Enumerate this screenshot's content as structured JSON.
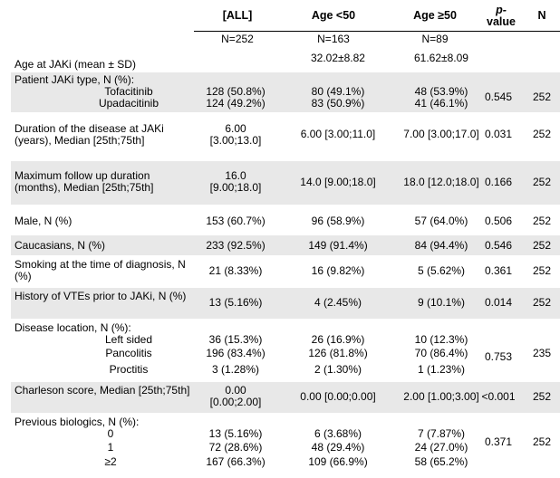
{
  "header": {
    "all": "[ALL]",
    "lt50": "Age <50",
    "ge50": "Age ≥50",
    "p1": "p-",
    "p2": "value",
    "n": "N",
    "n_all": "N=252",
    "n_lt50": "N=163",
    "n_ge50": "N=89"
  },
  "rows": {
    "age": {
      "label": "Age at JAKi (mean ± SD)",
      "lt50": "32.02±8.82",
      "ge50": "61.62±8.09"
    },
    "jaki": {
      "label": "Patient JAKi type, N (%):",
      "sub1": "Tofacitinib",
      "all1": "128 (50.8%)",
      "lt1": "80 (49.1%)",
      "ge1": "48 (53.9%)",
      "sub2": "Upadacitinib",
      "all2": "124 (49.2%)",
      "lt2": "83 (50.9%)",
      "ge2": "41 (46.1%)",
      "p": "0.545",
      "n": "252"
    },
    "duration": {
      "label": "Duration of the disease at JAKi (years), Median [25th;75th]",
      "all1": "6.00",
      "all2": "[3.00;13.0]",
      "lt50": "6.00 [3.00;11.0]",
      "ge50": "7.00 [3.00;17.0]",
      "p": "0.031",
      "n": "252"
    },
    "followup": {
      "label": "Maximum follow up duration (months), Median [25th;75th]",
      "all1": "16.0",
      "all2": "[9.00;18.0]",
      "lt50": "14.0 [9.00;18.0]",
      "ge50": "18.0 [12.0;18.0]",
      "p": "0.166",
      "n": "252"
    },
    "male": {
      "label": "Male, N (%)",
      "all": "153 (60.7%)",
      "lt50": "96 (58.9%)",
      "ge50": "57 (64.0%)",
      "p": "0.506",
      "n": "252"
    },
    "cauc": {
      "label": "Caucasians, N (%)",
      "all": "233 (92.5%)",
      "lt50": "149 (91.4%)",
      "ge50": "84 (94.4%)",
      "p": "0.546",
      "n": "252"
    },
    "smoking": {
      "label": "Smoking at the time of diagnosis, N (%)",
      "all": "21 (8.33%)",
      "lt50": "16 (9.82%)",
      "ge50": "5 (5.62%)",
      "p": "0.361",
      "n": "252"
    },
    "vte": {
      "label": "History of VTEs prior to JAKi, N (%)",
      "all": "13 (5.16%)",
      "lt50": "4 (2.45%)",
      "ge50": "9 (10.1%)",
      "p": "0.014",
      "n": "252"
    },
    "location": {
      "label": "Disease location, N (%):",
      "sub1": "Left sided",
      "all1": "36 (15.3%)",
      "lt1": "26 (16.9%)",
      "ge1": "10 (12.3%)",
      "sub2": "Pancolitis",
      "all2": "196 (83.4%)",
      "lt2": "126 (81.8%)",
      "ge2": "70 (86.4%)",
      "sub3": "Proctitis",
      "all3": "3 (1.28%)",
      "lt3": "2 (1.30%)",
      "ge3": "1 (1.23%)",
      "p": "0.753",
      "n": "235"
    },
    "charlson": {
      "label": "Charleson score, Median [25th;75th]",
      "all1": "0.00",
      "all2": "[0.00;2.00]",
      "lt50": "0.00 [0.00;0.00]",
      "ge50": "2.00 [1.00;3.00]",
      "p": "<0.001",
      "n": "252"
    },
    "biologics": {
      "label": "Previous biologics, N (%):",
      "sub1": "0",
      "all1": "13 (5.16%)",
      "lt1": "6 (3.68%)",
      "ge1": "7 (7.87%)",
      "sub2": "1",
      "all2": "72 (28.6%)",
      "lt2": "48 (29.4%)",
      "ge2": "24 (27.0%)",
      "sub3": "≥2",
      "all3": "167 (66.3%)",
      "lt3": "109 (66.9%)",
      "ge3": "58 (65.2%)",
      "p": "0.371",
      "n": "252"
    }
  }
}
